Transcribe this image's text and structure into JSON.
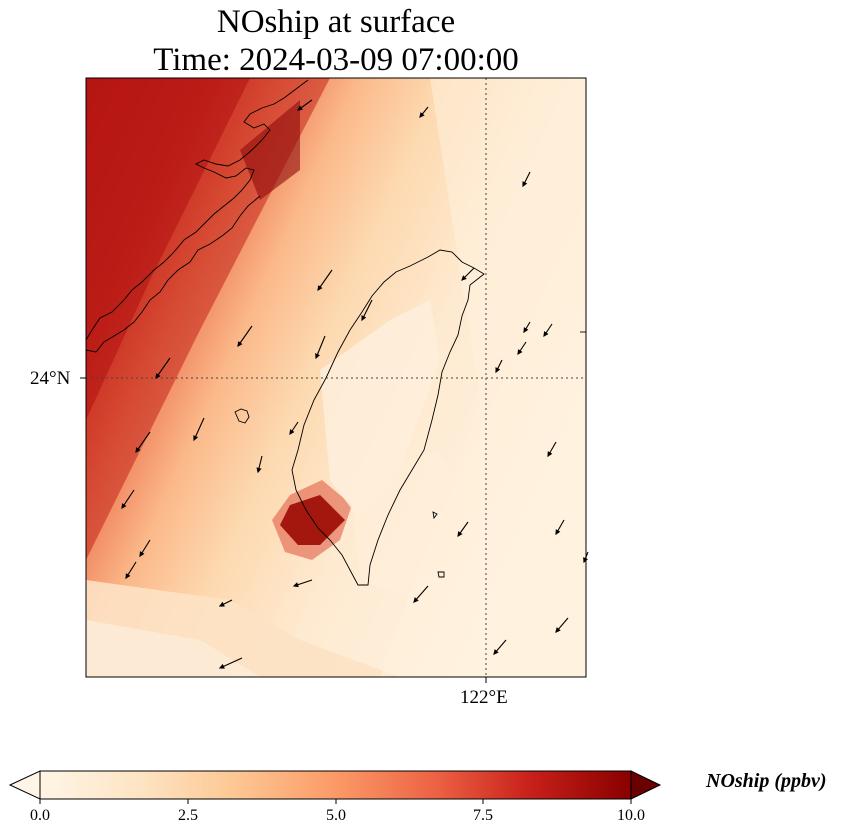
{
  "title": {
    "line1": "NOship at surface",
    "line2": "Time: 2024-03-09 07:00:00"
  },
  "axes": {
    "lat_label": "24°N",
    "lon_label": "122°E"
  },
  "colorbar": {
    "label": "NOship (ppbv)",
    "ticks": [
      "0.0",
      "2.5",
      "5.0",
      "7.5",
      "10.0"
    ],
    "range": [
      0,
      10
    ],
    "extend": "both",
    "colors": [
      "#fff5e6",
      "#fdd8a8",
      "#fcb07b",
      "#f0734e",
      "#d42c1c",
      "#9f0000",
      "#6a0000"
    ]
  },
  "map": {
    "variable": "NOship",
    "level": "surface",
    "gridlines": [
      "24°N",
      "122°E"
    ],
    "gridline_style": "dotted",
    "features": [
      "coastline",
      "wind-vectors"
    ],
    "high_concentration_region": "northwest (Taiwan Strait / China coast)",
    "hotspot": "southwest coast of Taiwan"
  }
}
